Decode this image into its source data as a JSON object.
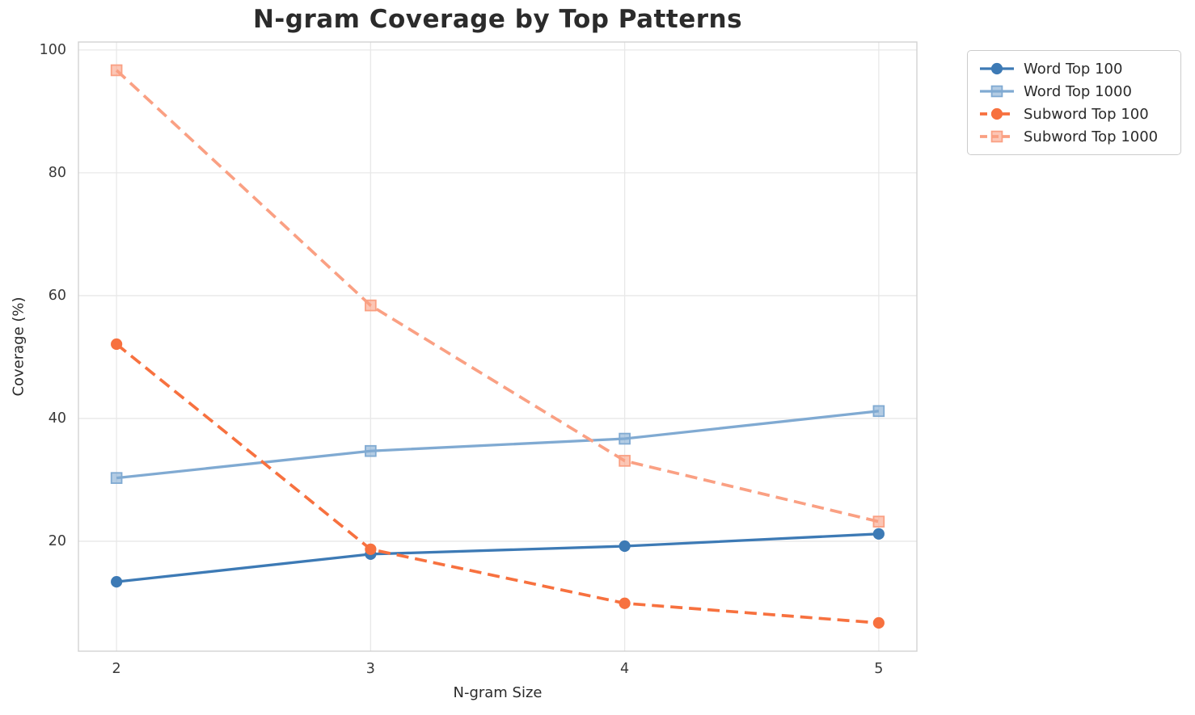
{
  "chart_data": {
    "type": "line",
    "title": "N-gram Coverage by Top Patterns",
    "xlabel": "N-gram Size",
    "ylabel": "Coverage (%)",
    "x": [
      2,
      3,
      4,
      5
    ],
    "x_ticks": [
      "2",
      "3",
      "4",
      "5"
    ],
    "y_ticks": [
      20,
      40,
      60,
      80,
      100
    ],
    "xlim": [
      1.85,
      5.15
    ],
    "ylim": [
      2.1,
      101.3
    ],
    "grid": true,
    "legend_position": "upper-right-outside",
    "series": [
      {
        "name": "Word Top 100",
        "values": [
          13.4,
          17.9,
          19.2,
          21.2
        ],
        "color": "#3d7ab5",
        "marker": "circle",
        "line_style": "solid"
      },
      {
        "name": "Word Top 1000",
        "values": [
          30.3,
          34.7,
          36.7,
          41.2
        ],
        "color": "#80aad2",
        "marker": "square",
        "line_style": "solid"
      },
      {
        "name": "Subword Top 100",
        "values": [
          52.1,
          18.7,
          9.9,
          6.7
        ],
        "color": "#f7713f",
        "marker": "circle",
        "line_style": "dashed"
      },
      {
        "name": "Subword Top 1000",
        "values": [
          96.7,
          58.4,
          33.1,
          23.2
        ],
        "color": "#faa083",
        "marker": "square",
        "line_style": "dashed"
      }
    ],
    "colors": {
      "background": "#ffffff",
      "grid": "#e8e8e8",
      "spine": "#d2d2d2",
      "title_text": "#2b2b2b",
      "tick_text": "#3a3a3a",
      "legend_border": "#cccccc"
    }
  }
}
